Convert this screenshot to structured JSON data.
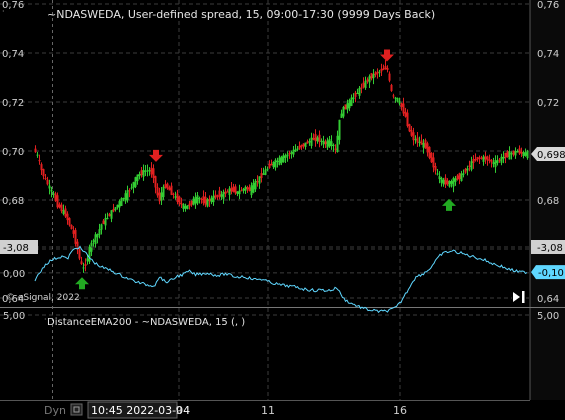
{
  "chart_data": [
    {
      "type": "candlestick",
      "title": "~NDASWEDA, User-defined spread, 15, 09:00-17:30 (9999 Days Back)",
      "watermark": "© eSignal, 2022",
      "ylim": [
        0.64,
        0.76
      ],
      "y_ticks": [
        "0,64",
        "0,66",
        "0,68",
        "0,70",
        "0,72",
        "0,74",
        "0,76"
      ],
      "last_value_label": "0,6988",
      "up_color": "#33cc33",
      "down_color": "#e02020",
      "path": [
        [
          0,
          0.701
        ],
        [
          4,
          0.698
        ],
        [
          8,
          0.692
        ],
        [
          12,
          0.688
        ],
        [
          16,
          0.685
        ],
        [
          20,
          0.682
        ],
        [
          24,
          0.678
        ],
        [
          28,
          0.676
        ],
        [
          32,
          0.674
        ],
        [
          36,
          0.67
        ],
        [
          40,
          0.666
        ],
        [
          44,
          0.66
        ],
        [
          47,
          0.654
        ],
        [
          50,
          0.652
        ],
        [
          53,
          0.655
        ],
        [
          56,
          0.66
        ],
        [
          60,
          0.664
        ],
        [
          64,
          0.666
        ],
        [
          68,
          0.67
        ],
        [
          72,
          0.672
        ],
        [
          76,
          0.674
        ],
        [
          80,
          0.676
        ],
        [
          84,
          0.678
        ],
        [
          88,
          0.68
        ],
        [
          92,
          0.682
        ],
        [
          96,
          0.684
        ],
        [
          100,
          0.687
        ],
        [
          104,
          0.69
        ],
        [
          108,
          0.691
        ],
        [
          112,
          0.692
        ],
        [
          116,
          0.692
        ],
        [
          120,
          0.69
        ],
        [
          122,
          0.685
        ],
        [
          124,
          0.682
        ],
        [
          126,
          0.68
        ],
        [
          128,
          0.683
        ],
        [
          132,
          0.686
        ],
        [
          136,
          0.684
        ],
        [
          140,
          0.682
        ],
        [
          144,
          0.68
        ],
        [
          148,
          0.678
        ],
        [
          152,
          0.677
        ],
        [
          156,
          0.678
        ],
        [
          160,
          0.68
        ],
        [
          164,
          0.681
        ],
        [
          168,
          0.68
        ],
        [
          172,
          0.679
        ],
        [
          176,
          0.68
        ],
        [
          180,
          0.681
        ],
        [
          184,
          0.682
        ],
        [
          188,
          0.682
        ],
        [
          192,
          0.683
        ],
        [
          196,
          0.684
        ],
        [
          200,
          0.684
        ],
        [
          204,
          0.683
        ],
        [
          208,
          0.684
        ],
        [
          212,
          0.685
        ],
        [
          216,
          0.684
        ],
        [
          220,
          0.686
        ],
        [
          224,
          0.688
        ],
        [
          228,
          0.69
        ],
        [
          232,
          0.692
        ],
        [
          236,
          0.694
        ],
        [
          240,
          0.695
        ],
        [
          244,
          0.696
        ],
        [
          248,
          0.697
        ],
        [
          252,
          0.698
        ],
        [
          256,
          0.699
        ],
        [
          260,
          0.7
        ],
        [
          264,
          0.701
        ],
        [
          268,
          0.702
        ],
        [
          272,
          0.703
        ],
        [
          276,
          0.704
        ],
        [
          280,
          0.705
        ],
        [
          284,
          0.705
        ],
        [
          288,
          0.704
        ],
        [
          292,
          0.703
        ],
        [
          296,
          0.704
        ],
        [
          300,
          0.702
        ],
        [
          302,
          0.7
        ],
        [
          304,
          0.706
        ],
        [
          306,
          0.712
        ],
        [
          308,
          0.716
        ],
        [
          312,
          0.718
        ],
        [
          316,
          0.72
        ],
        [
          320,
          0.722
        ],
        [
          324,
          0.724
        ],
        [
          328,
          0.726
        ],
        [
          332,
          0.728
        ],
        [
          336,
          0.73
        ],
        [
          340,
          0.731
        ],
        [
          344,
          0.732
        ],
        [
          348,
          0.733
        ],
        [
          352,
          0.734
        ],
        [
          354,
          0.733
        ],
        [
          356,
          0.728
        ],
        [
          358,
          0.724
        ],
        [
          360,
          0.722
        ],
        [
          364,
          0.721
        ],
        [
          368,
          0.718
        ],
        [
          372,
          0.714
        ],
        [
          376,
          0.708
        ],
        [
          380,
          0.705
        ],
        [
          384,
          0.704
        ],
        [
          388,
          0.703
        ],
        [
          392,
          0.702
        ],
        [
          396,
          0.698
        ],
        [
          400,
          0.694
        ],
        [
          404,
          0.69
        ],
        [
          408,
          0.688
        ],
        [
          412,
          0.687
        ],
        [
          416,
          0.687
        ],
        [
          420,
          0.688
        ],
        [
          424,
          0.689
        ],
        [
          428,
          0.69
        ],
        [
          432,
          0.692
        ],
        [
          436,
          0.694
        ],
        [
          440,
          0.696
        ],
        [
          444,
          0.697
        ],
        [
          448,
          0.697
        ],
        [
          452,
          0.697
        ],
        [
          456,
          0.696
        ],
        [
          460,
          0.695
        ],
        [
          464,
          0.696
        ],
        [
          468,
          0.697
        ],
        [
          472,
          0.698
        ],
        [
          476,
          0.699
        ],
        [
          480,
          0.699
        ],
        [
          484,
          0.7
        ],
        [
          488,
          0.699
        ],
        [
          492,
          0.699
        ]
      ],
      "arrows": [
        {
          "type": "down",
          "color": "#e02020",
          "x": 121,
          "y": 0.698
        },
        {
          "type": "up",
          "color": "#22aa22",
          "x": 47,
          "y": 0.646
        },
        {
          "type": "down",
          "color": "#e02020",
          "x": 352,
          "y": 0.739
        },
        {
          "type": "up",
          "color": "#22aa22",
          "x": 414,
          "y": 0.678
        }
      ]
    },
    {
      "type": "line",
      "title": "DistanceEMA200 - ~NDASWEDA, 15 (, )",
      "ylim": [
        -3.08,
        5.0
      ],
      "y_ticks": [
        "5,00",
        "0,00",
        "-3,08"
      ],
      "last_value_label": "-0,10",
      "color": "#5fd7ff",
      "values": [
        [
          0,
          0.8
        ],
        [
          6,
          -0.2
        ],
        [
          10,
          -1.0
        ],
        [
          16,
          -1.5
        ],
        [
          22,
          -1.8
        ],
        [
          28,
          -2.0
        ],
        [
          32,
          -1.6
        ],
        [
          36,
          -2.4
        ],
        [
          40,
          -2.9
        ],
        [
          44,
          -3.1
        ],
        [
          48,
          -2.6
        ],
        [
          52,
          -2.2
        ],
        [
          56,
          -1.6
        ],
        [
          62,
          -1.0
        ],
        [
          68,
          -0.6
        ],
        [
          76,
          -0.3
        ],
        [
          84,
          0.2
        ],
        [
          92,
          0.6
        ],
        [
          100,
          1.0
        ],
        [
          108,
          1.3
        ],
        [
          116,
          1.5
        ],
        [
          120,
          1.4
        ],
        [
          122,
          0.8
        ],
        [
          126,
          0.5
        ],
        [
          130,
          1.1
        ],
        [
          136,
          0.9
        ],
        [
          142,
          0.4
        ],
        [
          148,
          0.2
        ],
        [
          154,
          -0.2
        ],
        [
          160,
          0.2
        ],
        [
          166,
          0.1
        ],
        [
          172,
          0.0
        ],
        [
          178,
          0.2
        ],
        [
          184,
          0.3
        ],
        [
          190,
          0.1
        ],
        [
          196,
          0.3
        ],
        [
          202,
          0.5
        ],
        [
          208,
          0.4
        ],
        [
          214,
          0.6
        ],
        [
          220,
          0.8
        ],
        [
          226,
          0.7
        ],
        [
          232,
          1.0
        ],
        [
          238,
          1.2
        ],
        [
          244,
          1.4
        ],
        [
          250,
          1.5
        ],
        [
          256,
          1.6
        ],
        [
          262,
          1.7
        ],
        [
          268,
          1.9
        ],
        [
          274,
          2.0
        ],
        [
          280,
          2.1
        ],
        [
          286,
          2.0
        ],
        [
          292,
          2.1
        ],
        [
          298,
          2.0
        ],
        [
          302,
          1.7
        ],
        [
          306,
          2.6
        ],
        [
          310,
          3.2
        ],
        [
          316,
          3.6
        ],
        [
          322,
          3.9
        ],
        [
          328,
          4.2
        ],
        [
          334,
          4.4
        ],
        [
          340,
          4.5
        ],
        [
          346,
          4.6
        ],
        [
          352,
          4.5
        ],
        [
          358,
          4.3
        ],
        [
          362,
          4.0
        ],
        [
          366,
          3.4
        ],
        [
          370,
          2.6
        ],
        [
          374,
          1.8
        ],
        [
          378,
          0.9
        ],
        [
          382,
          0.4
        ],
        [
          388,
          0.1
        ],
        [
          394,
          -0.4
        ],
        [
          398,
          -1.0
        ],
        [
          402,
          -1.6
        ],
        [
          406,
          -2.2
        ],
        [
          412,
          -2.5
        ],
        [
          418,
          -2.6
        ],
        [
          424,
          -2.4
        ],
        [
          430,
          -2.2
        ],
        [
          436,
          -2.0
        ],
        [
          442,
          -1.8
        ],
        [
          448,
          -1.6
        ],
        [
          454,
          -1.3
        ],
        [
          460,
          -1.0
        ],
        [
          466,
          -0.8
        ],
        [
          472,
          -0.5
        ],
        [
          478,
          -0.3
        ],
        [
          484,
          -0.1
        ],
        [
          492,
          -0.1
        ]
      ]
    }
  ],
  "x_axis": {
    "current_time": "10:45 2022-03-04",
    "ticks": [
      {
        "label": "9",
        "x": 179
      },
      {
        "label": "11",
        "x": 268
      },
      {
        "label": "16",
        "x": 400
      }
    ]
  },
  "toolbar": {
    "mode": "Dyn"
  },
  "colors": {
    "grid": "#3c3c3c",
    "axis_text": "#cfcfcf"
  }
}
